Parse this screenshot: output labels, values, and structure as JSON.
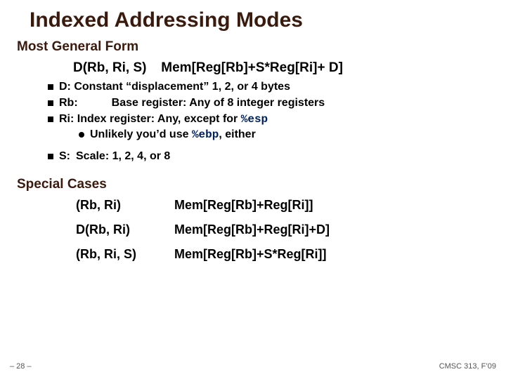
{
  "title": "Indexed Addressing Modes",
  "title_color": "#3b1a0e",
  "section1": {
    "heading": "Most General Form",
    "heading_color": "#3b1a0e",
    "formula_left": "D(Rb, Ri, S)",
    "formula_right": "Mem[Reg[Rb]+S*Reg[Ri]+ D]",
    "bullets": [
      "D: Constant “displacement” 1, 2, or 4 bytes",
      "Rb:   Base register: Any of 8 integer registers"
    ],
    "bullet_ri_prefix": "Ri: Index register: Any, except for ",
    "bullet_ri_code": "%esp",
    "sub_prefix": "Unlikely you’d use ",
    "sub_code": "%ebp",
    "sub_suffix": ", either",
    "bullet_s": "S: Scale: 1, 2, 4, or 8"
  },
  "section2": {
    "heading": "Special Cases",
    "heading_color": "#3b1a0e",
    "rows": [
      {
        "l": "(Rb, Ri)",
        "r": "Mem[Reg[Rb]+Reg[Ri]]"
      },
      {
        "l": "D(Rb, Ri)",
        "r": "Mem[Reg[Rb]+Reg[Ri]+D]"
      },
      {
        "l": "(Rb, Ri, S)",
        "r": "Mem[Reg[Rb]+S*Reg[Ri]]"
      }
    ]
  },
  "footer": {
    "page": "– 28 –",
    "course": "CMSC 313, F’09"
  },
  "colors": {
    "code_color": "#002060",
    "background": "#ffffff"
  }
}
